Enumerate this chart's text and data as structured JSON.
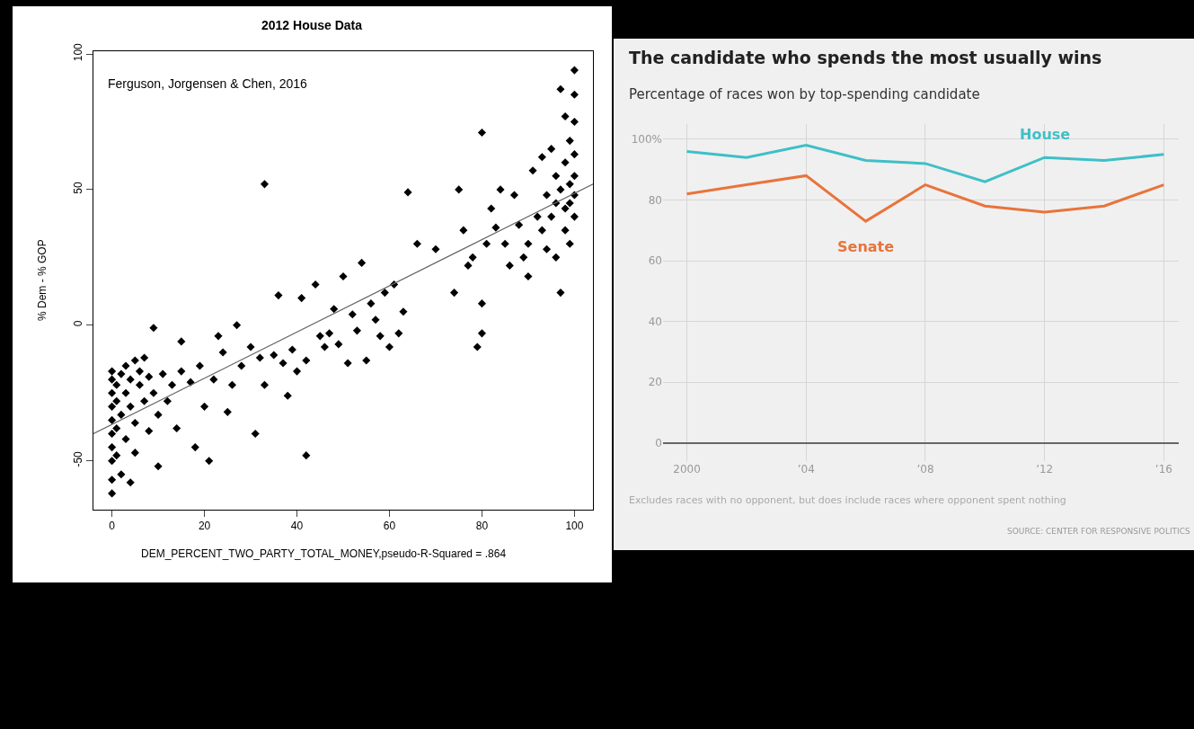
{
  "chart_data": [
    {
      "type": "scatter",
      "title": "2012 House Data",
      "xlabel": "DEM_PERCENT_TWO_PARTY_TOTAL_MONEY,pseudo-R-Squared = .864",
      "ylabel": "% Dem - % GOP",
      "annotations": [
        "Ferguson, Jorgensen & Chen, 2016"
      ],
      "xlim": [
        -4,
        104
      ],
      "ylim": [
        -68,
        101
      ],
      "xticks": [
        0,
        20,
        40,
        60,
        80,
        100
      ],
      "yticks": [
        -50,
        0,
        50,
        100
      ],
      "grid": false,
      "legend": false,
      "series": [
        {
          "color": "#000000",
          "marker": "diamond",
          "x": [
            0,
            0,
            0,
            0,
            0,
            0,
            0,
            0,
            0,
            0,
            1,
            1,
            1,
            1,
            2,
            2,
            2,
            3,
            3,
            3,
            4,
            4,
            4,
            5,
            5,
            5,
            6,
            6,
            7,
            7,
            8,
            8,
            9,
            9,
            10,
            10,
            11,
            12,
            13,
            14,
            15,
            15,
            17,
            18,
            19,
            20,
            21,
            22,
            23,
            24,
            25,
            26,
            27,
            28,
            30,
            31,
            32,
            33,
            33,
            35,
            36,
            37,
            38,
            39,
            40,
            41,
            42,
            42,
            44,
            45,
            46,
            47,
            48,
            49,
            50,
            51,
            52,
            53,
            54,
            55,
            56,
            57,
            58,
            59,
            60,
            61,
            62,
            63,
            64,
            66,
            70,
            74,
            75,
            76,
            77,
            78,
            79,
            80,
            80,
            80,
            81,
            82,
            83,
            84,
            85,
            86,
            87,
            88,
            89,
            90,
            90,
            91,
            92,
            93,
            93,
            94,
            94,
            95,
            95,
            96,
            96,
            96,
            97,
            97,
            97,
            98,
            98,
            98,
            98,
            99,
            99,
            99,
            100,
            100,
            100,
            100,
            100,
            100,
            100,
            99
          ],
          "values": [
            -62,
            -57,
            -50,
            -45,
            -40,
            -35,
            -30,
            -25,
            -20,
            -17,
            -48,
            -38,
            -28,
            -22,
            -33,
            -18,
            -55,
            -25,
            -15,
            -42,
            -20,
            -30,
            -58,
            -13,
            -36,
            -47,
            -22,
            -17,
            -28,
            -12,
            -19,
            -39,
            -1,
            -25,
            -52,
            -33,
            -18,
            -28,
            -22,
            -38,
            -6,
            -17,
            -21,
            -45,
            -15,
            -30,
            -50,
            -20,
            -4,
            -10,
            -32,
            -22,
            0,
            -15,
            -8,
            -40,
            -12,
            -22,
            52,
            -11,
            11,
            -14,
            -26,
            -9,
            -17,
            10,
            -48,
            -13,
            15,
            -4,
            -8,
            -3,
            6,
            -7,
            18,
            -14,
            4,
            -2,
            23,
            -13,
            8,
            2,
            -4,
            12,
            -8,
            15,
            -3,
            5,
            49,
            30,
            28,
            12,
            50,
            35,
            22,
            25,
            -8,
            71,
            8,
            -3,
            30,
            43,
            36,
            50,
            30,
            22,
            48,
            37,
            25,
            30,
            18,
            57,
            40,
            35,
            62,
            28,
            48,
            65,
            40,
            45,
            25,
            55,
            12,
            87,
            50,
            43,
            60,
            77,
            35,
            68,
            45,
            30,
            94,
            75,
            55,
            40,
            63,
            85,
            48,
            52
          ]
        },
        {
          "type": "line",
          "marker": "none",
          "color": "#666666",
          "x": [
            -4,
            104
          ],
          "values": [
            -40,
            52
          ]
        }
      ]
    },
    {
      "type": "line",
      "title": "The candidate who spends the most usually wins",
      "subtitle": "Percentage of races won by top-spending candidate",
      "annotations": [
        "Excludes races with no opponent, but does include races where opponent spent nothing",
        "SOURCE: CENTER FOR RESPONSIVE POLITICS"
      ],
      "x": [
        2000,
        2002,
        2004,
        2006,
        2008,
        2010,
        2012,
        2014,
        2016
      ],
      "xlim": [
        1999.2,
        2016.5
      ],
      "ylim": [
        -6,
        105
      ],
      "xticks": [
        {
          "value": 2000,
          "label": "2000"
        },
        {
          "value": 2004,
          "label": "’04"
        },
        {
          "value": 2008,
          "label": "’08"
        },
        {
          "value": 2012,
          "label": "’12"
        },
        {
          "value": 2016,
          "label": "’16"
        }
      ],
      "yticks": [
        0,
        20,
        40,
        60,
        80,
        {
          "value": 100,
          "label": "100%"
        }
      ],
      "grid": true,
      "legend": false,
      "marker": "none",
      "series": [
        {
          "name": "House",
          "color": "#3fbfc7",
          "values": [
            96,
            94,
            98,
            93,
            92,
            86,
            94,
            93,
            95
          ]
        },
        {
          "name": "Senate",
          "color": "#e8743b",
          "values": [
            82,
            85,
            88,
            73,
            85,
            78,
            76,
            78,
            85
          ]
        }
      ]
    }
  ]
}
